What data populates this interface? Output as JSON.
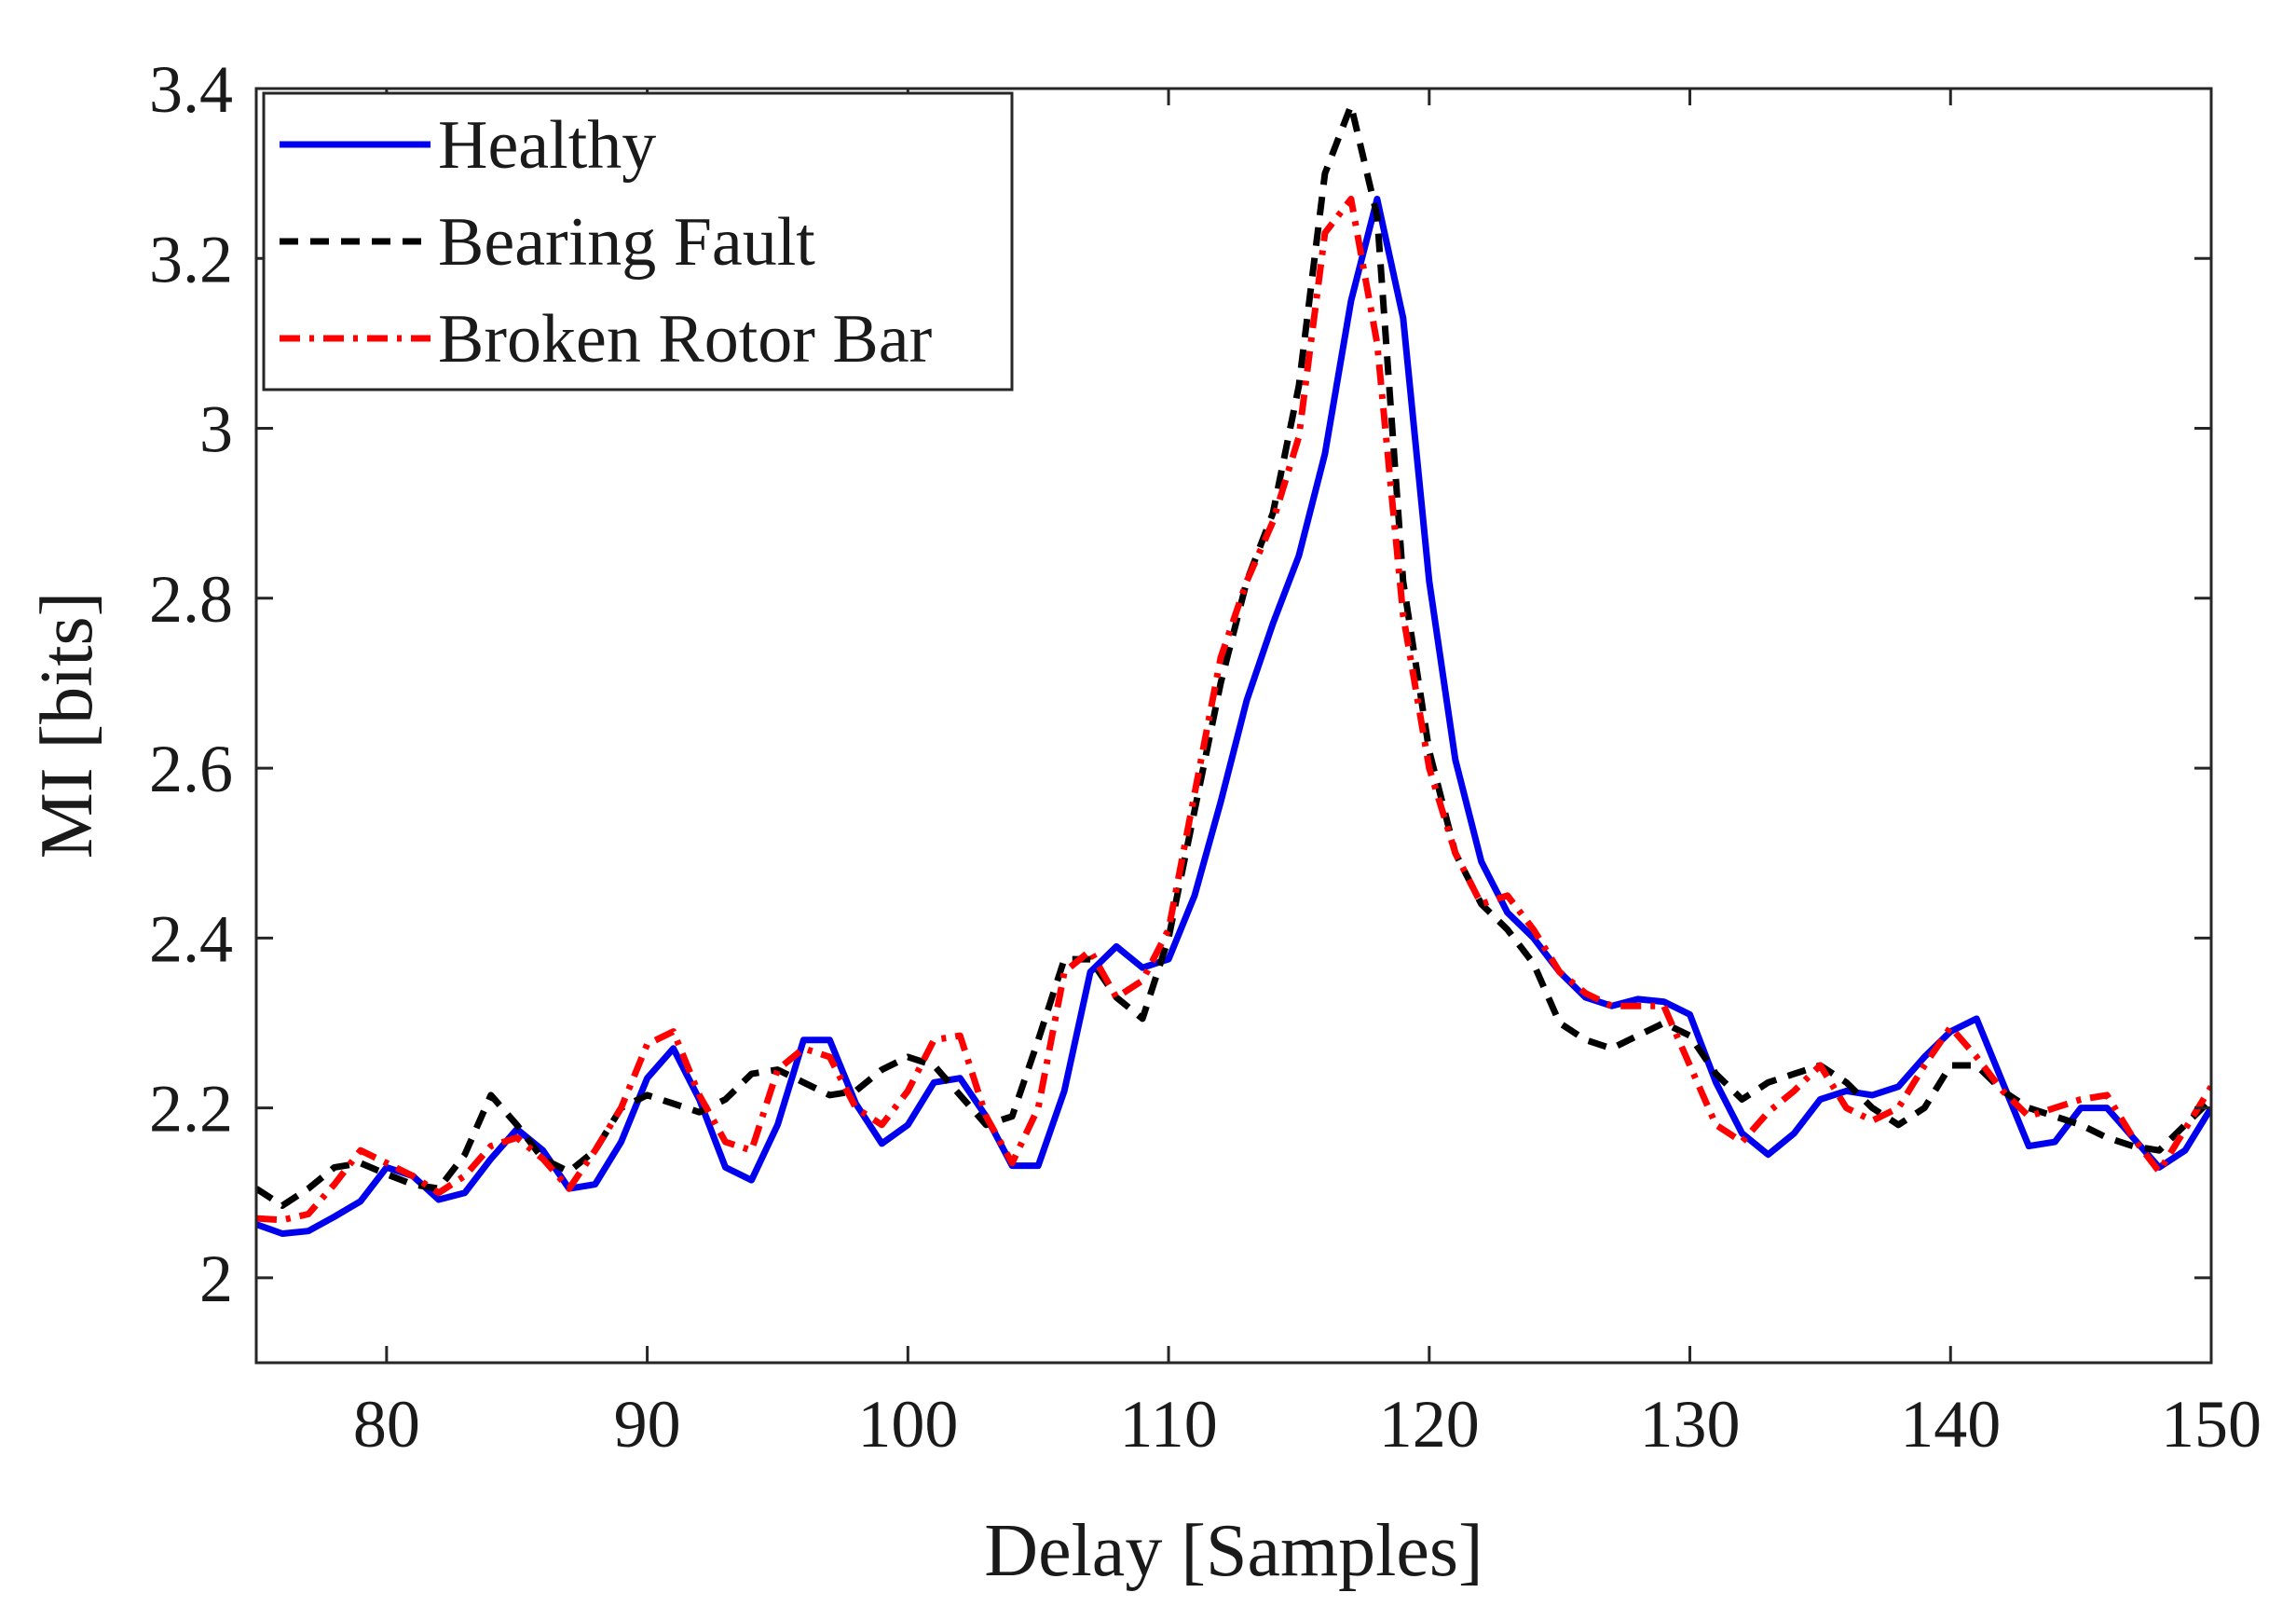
{
  "chart_data": {
    "type": "line",
    "xlabel": "Delay [Samples]",
    "ylabel": "MI [bits]",
    "xlim": [
      75,
      150
    ],
    "ylim": [
      1.9,
      3.4
    ],
    "xticks": [
      80,
      90,
      100,
      110,
      120,
      130,
      140,
      150
    ],
    "yticks": [
      2,
      2.2,
      2.4,
      2.6,
      2.8,
      3,
      3.2,
      3.4
    ],
    "ytick_labels": [
      "2",
      "2.2",
      "2.4",
      "2.6",
      "2.8",
      "3",
      "3.2",
      "3.4"
    ],
    "grid": false,
    "legend_position": "top-left",
    "x": [
      75,
      76,
      77,
      78,
      79,
      80,
      81,
      82,
      83,
      84,
      85,
      86,
      87,
      88,
      89,
      90,
      91,
      92,
      93,
      94,
      95,
      96,
      97,
      98,
      99,
      100,
      101,
      102,
      103,
      104,
      105,
      106,
      107,
      108,
      109,
      110,
      111,
      112,
      113,
      114,
      115,
      116,
      117,
      118,
      119,
      120,
      121,
      122,
      123,
      124,
      125,
      126,
      127,
      128,
      129,
      130,
      131,
      132,
      133,
      134,
      135,
      136,
      137,
      138,
      139,
      140,
      141,
      142,
      143,
      144,
      145,
      146,
      147,
      148,
      149,
      150
    ],
    "series": [
      {
        "name": "Healthy",
        "color": "#0000ee",
        "style": "solid",
        "values": [
          2.063,
          2.052,
          2.055,
          2.072,
          2.09,
          2.13,
          2.12,
          2.092,
          2.1,
          2.14,
          2.175,
          2.15,
          2.105,
          2.11,
          2.16,
          2.235,
          2.27,
          2.21,
          2.13,
          2.115,
          2.18,
          2.28,
          2.28,
          2.205,
          2.158,
          2.18,
          2.23,
          2.235,
          2.19,
          2.132,
          2.132,
          2.22,
          2.36,
          2.39,
          2.365,
          2.375,
          2.45,
          2.56,
          2.68,
          2.77,
          2.85,
          2.97,
          3.15,
          3.27,
          3.13,
          2.82,
          2.61,
          2.49,
          2.43,
          2.4,
          2.36,
          2.33,
          2.32,
          2.328,
          2.325,
          2.31,
          2.23,
          2.17,
          2.145,
          2.17,
          2.21,
          2.22,
          2.215,
          2.225,
          2.26,
          2.29,
          2.305,
          2.23,
          2.155,
          2.16,
          2.2,
          2.2,
          2.165,
          2.13,
          2.15,
          2.2
        ]
      },
      {
        "name": "Bearing Fault",
        "color": "#000000",
        "style": "dashed",
        "values": [
          2.105,
          2.085,
          2.105,
          2.13,
          2.135,
          2.122,
          2.11,
          2.105,
          2.145,
          2.215,
          2.18,
          2.14,
          2.125,
          2.15,
          2.2,
          2.215,
          2.205,
          2.195,
          2.21,
          2.24,
          2.245,
          2.23,
          2.215,
          2.22,
          2.245,
          2.26,
          2.25,
          2.215,
          2.18,
          2.19,
          2.28,
          2.375,
          2.375,
          2.33,
          2.305,
          2.4,
          2.55,
          2.7,
          2.82,
          2.9,
          3.05,
          3.3,
          3.38,
          3.25,
          2.82,
          2.62,
          2.5,
          2.44,
          2.41,
          2.37,
          2.3,
          2.28,
          2.27,
          2.285,
          2.3,
          2.285,
          2.24,
          2.21,
          2.23,
          2.24,
          2.25,
          2.23,
          2.2,
          2.18,
          2.2,
          2.25,
          2.25,
          2.22,
          2.2,
          2.19,
          2.18,
          2.165,
          2.155,
          2.15,
          2.18,
          2.21
        ]
      },
      {
        "name": "Broken Rotor Bar",
        "color": "#ff0000",
        "style": "dashdot",
        "values": [
          2.07,
          2.068,
          2.075,
          2.11,
          2.15,
          2.135,
          2.12,
          2.1,
          2.12,
          2.155,
          2.165,
          2.14,
          2.105,
          2.15,
          2.2,
          2.275,
          2.29,
          2.215,
          2.16,
          2.15,
          2.245,
          2.27,
          2.26,
          2.2,
          2.18,
          2.22,
          2.28,
          2.285,
          2.19,
          2.135,
          2.2,
          2.36,
          2.385,
          2.33,
          2.35,
          2.41,
          2.57,
          2.73,
          2.82,
          2.89,
          2.99,
          3.23,
          3.27,
          3.1,
          2.78,
          2.6,
          2.5,
          2.44,
          2.45,
          2.41,
          2.36,
          2.335,
          2.32,
          2.32,
          2.32,
          2.25,
          2.18,
          2.16,
          2.195,
          2.22,
          2.25,
          2.2,
          2.185,
          2.2,
          2.25,
          2.295,
          2.26,
          2.22,
          2.19,
          2.2,
          2.21,
          2.215,
          2.165,
          2.125,
          2.175,
          2.225
        ]
      }
    ]
  }
}
